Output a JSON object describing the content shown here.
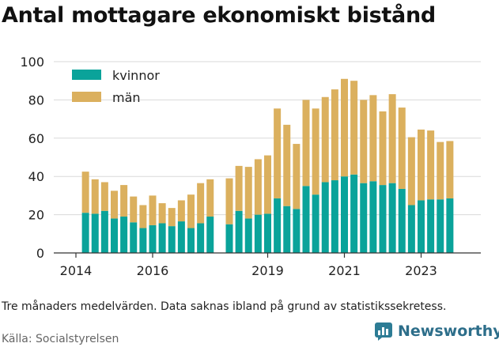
{
  "title": "Antal mottagare ekonomiskt bistånd",
  "caption": "Tre månaders medelvärden. Data saknas ibland på grund av statistikssekretess.",
  "source": "Källa: Socialstyrelsen",
  "brand": "Newsworthy",
  "colors": {
    "kvinnor": "#0aa39a",
    "man": "#dbb05e",
    "grid": "#d9d9d9",
    "axis": "#333333"
  },
  "chart_data": {
    "type": "bar",
    "stacked": true,
    "ylim": [
      0,
      100
    ],
    "yticks": [
      0,
      20,
      40,
      60,
      80,
      100
    ],
    "xticks": [
      "2014",
      "2016",
      "2019",
      "2021",
      "2023"
    ],
    "legend": {
      "placement": "top-left",
      "items": [
        "kvinnor",
        "män"
      ]
    },
    "grid": true,
    "x": [
      "2014-Q2",
      "2014-Q3",
      "2014-Q4",
      "2015-Q1",
      "2015-Q2",
      "2015-Q3",
      "2015-Q4",
      "2016-Q1",
      "2016-Q2",
      "2016-Q3",
      "2016-Q4",
      "2017-Q1",
      "2017-Q2",
      "2017-Q3",
      "2018-Q1",
      "2018-Q2",
      "2018-Q3",
      "2018-Q4",
      "2019-Q1",
      "2019-Q2",
      "2019-Q3",
      "2019-Q4",
      "2020-Q1",
      "2020-Q2",
      "2020-Q3",
      "2020-Q4",
      "2021-Q1",
      "2021-Q2",
      "2021-Q3",
      "2021-Q4",
      "2022-Q1",
      "2022-Q2",
      "2022-Q3",
      "2022-Q4",
      "2023-Q1",
      "2023-Q2",
      "2023-Q3",
      "2023-Q4"
    ],
    "series": [
      {
        "name": "kvinnor",
        "values": [
          21,
          20.5,
          22,
          18,
          19,
          16,
          13,
          14.5,
          15.5,
          14,
          16.5,
          13,
          15.5,
          19,
          15,
          22,
          18,
          20,
          20.5,
          28.5,
          24.5,
          23,
          35,
          30.5,
          37,
          38,
          40,
          41,
          36.5,
          37.5,
          35.5,
          36.5,
          33.5,
          25,
          27.5,
          28,
          28,
          28.5
        ]
      },
      {
        "name": "män",
        "values": [
          21.5,
          18,
          15,
          14.5,
          16.5,
          13.5,
          12,
          15.5,
          10.5,
          9.5,
          11,
          17.5,
          21,
          19.5,
          24,
          23.5,
          27,
          29,
          30.5,
          47,
          42.5,
          34,
          45,
          45,
          44.5,
          47.5,
          51,
          49,
          43.5,
          45,
          38.5,
          46.5,
          42.5,
          35.5,
          37,
          36,
          30,
          30
        ]
      }
    ]
  }
}
